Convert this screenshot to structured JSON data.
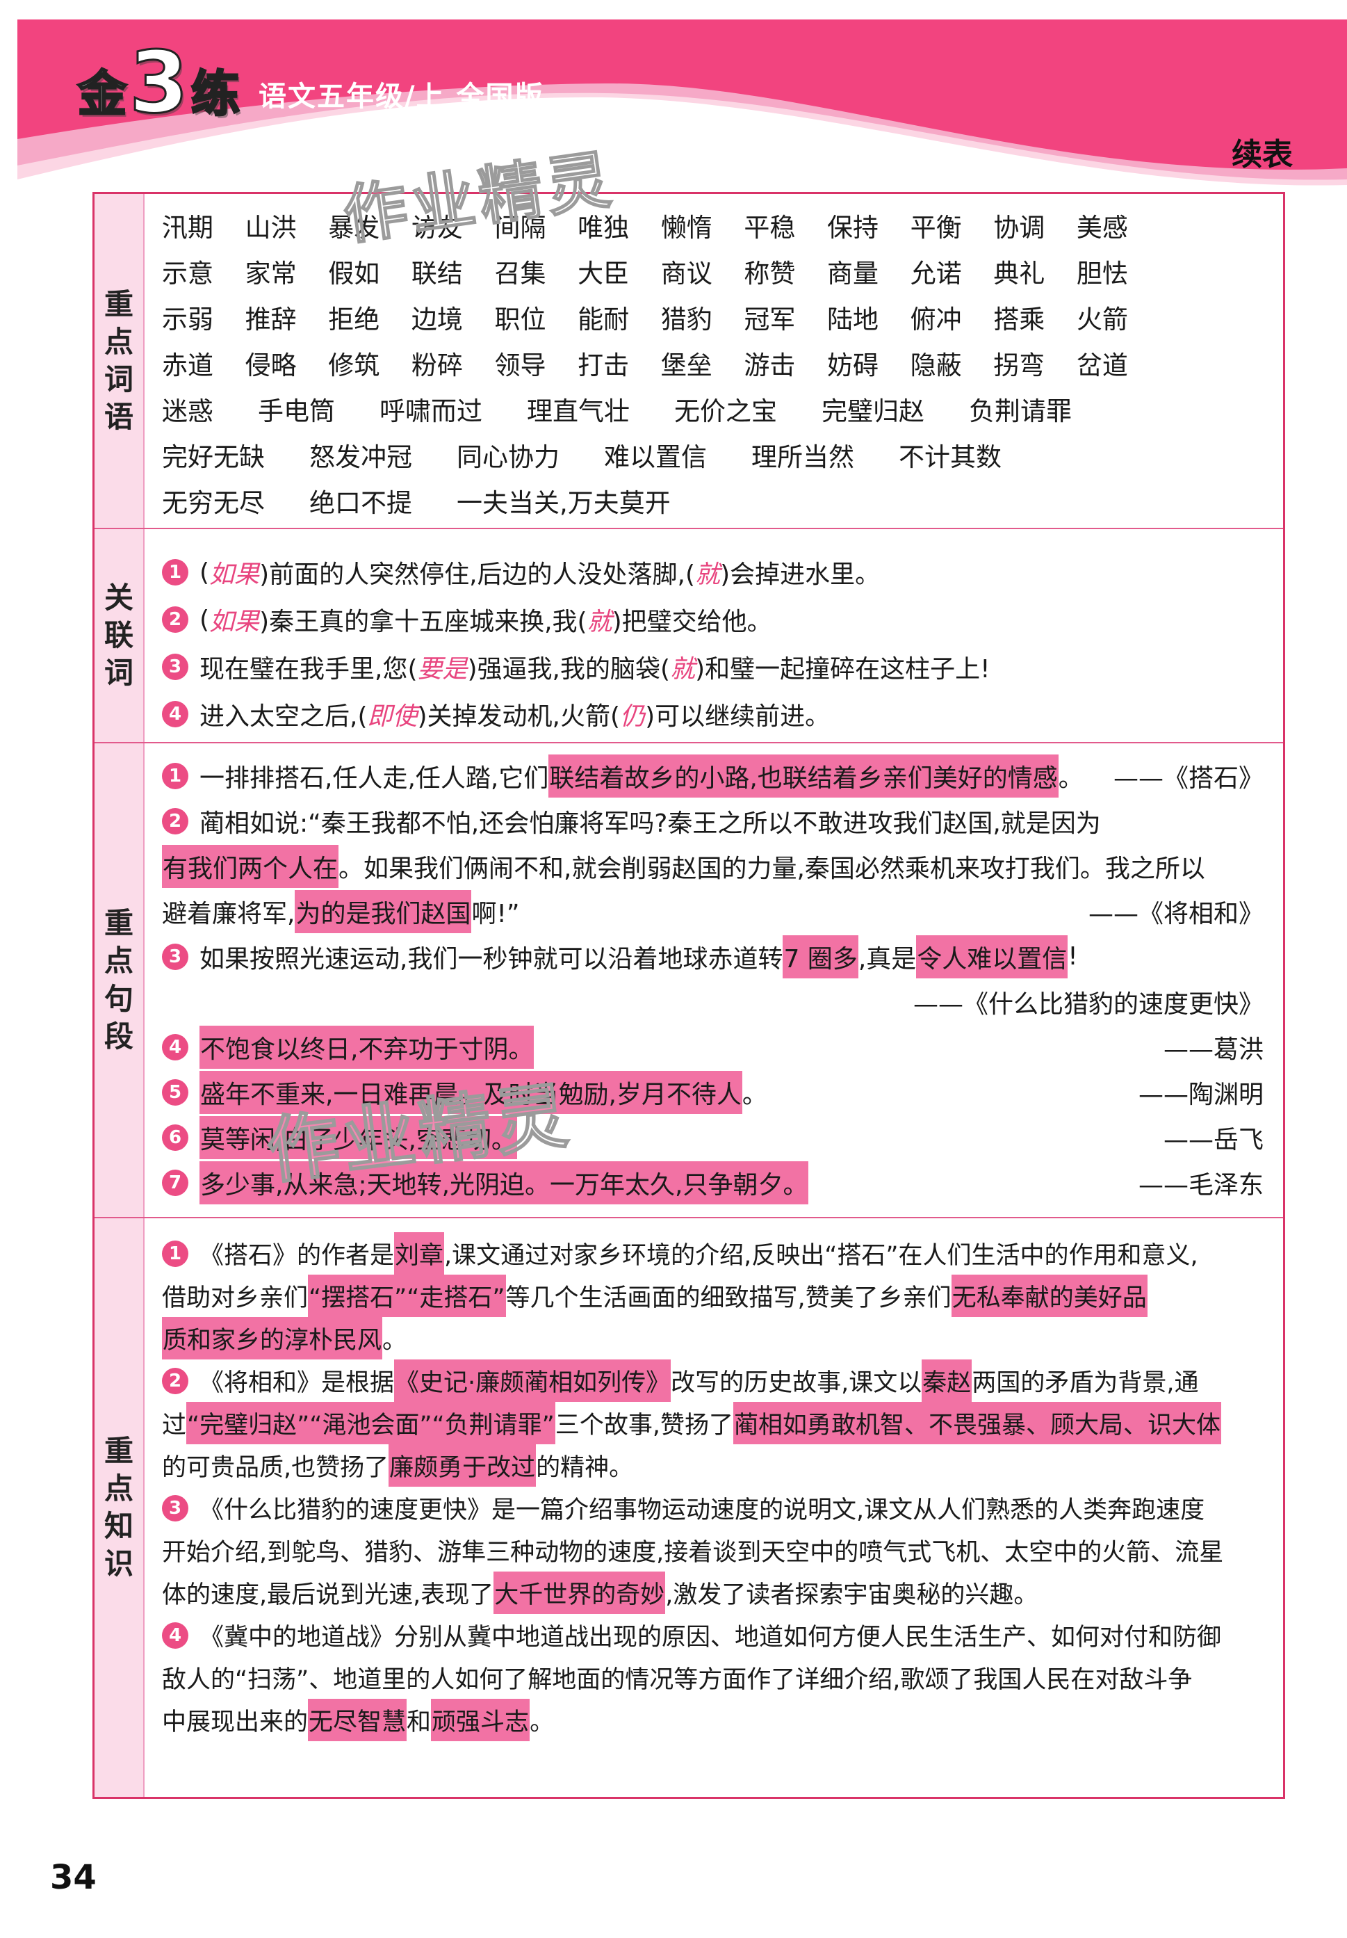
{
  "header": {
    "logo_parts": [
      "金",
      "3",
      "练"
    ],
    "subtitle": "语文五年级/上  全国版",
    "continued_label": "续表"
  },
  "watermark": "作业精灵",
  "page_number": "34",
  "colors": {
    "banner_magenta": "#f2447f",
    "banner_light_pink": "#f6a9c7",
    "banner_pale_pink": "#fcd6e4",
    "table_border": "#d93368",
    "label_band": "#fbdce9",
    "highlight": "#f272a4",
    "number_badge": "#ec4c84",
    "answer_pink": "#e8457f"
  },
  "sections": [
    {
      "key": "key-words",
      "label": "重点词语",
      "type": "words",
      "rows": [
        {
          "mode": "between",
          "words": [
            "汛期",
            "山洪",
            "暴发",
            "访友",
            "间隔",
            "唯独",
            "懒惰",
            "平稳",
            "保持",
            "平衡",
            "协调",
            "美感"
          ]
        },
        {
          "mode": "between",
          "words": [
            "示意",
            "家常",
            "假如",
            "联结",
            "召集",
            "大臣",
            "商议",
            "称赞",
            "商量",
            "允诺",
            "典礼",
            "胆怯"
          ]
        },
        {
          "mode": "between",
          "words": [
            "示弱",
            "推辞",
            "拒绝",
            "边境",
            "职位",
            "能耐",
            "猎豹",
            "冠军",
            "陆地",
            "俯冲",
            "搭乘",
            "火箭"
          ]
        },
        {
          "mode": "between",
          "words": [
            "赤道",
            "侵略",
            "修筑",
            "粉碎",
            "领导",
            "打击",
            "堡垒",
            "游击",
            "妨碍",
            "隐蔽",
            "拐弯",
            "岔道"
          ]
        },
        {
          "mode": "flow",
          "words": [
            "迷惑",
            "手电筒",
            "呼啸而过",
            "理直气壮",
            "无价之宝",
            "完璧归赵",
            "负荆请罪"
          ]
        },
        {
          "mode": "flow",
          "words": [
            "完好无缺",
            "怒发冲冠",
            "同心协力",
            "难以置信",
            "理所当然",
            "不计其数"
          ]
        },
        {
          "mode": "flow",
          "words": [
            "无穷无尽",
            "绝口不提",
            "一夫当关,万夫莫开"
          ]
        }
      ]
    },
    {
      "key": "conjunctions",
      "label": "关联词",
      "type": "items",
      "cls": "s2",
      "items": [
        {
          "n": "1",
          "lines": [
            {
              "segs": [
                {
                  "t": "("
                },
                {
                  "t": "如果",
                  "s": "ans"
                },
                {
                  "t": ")前面的人突然停住,后边的人没处落脚,("
                },
                {
                  "t": "就",
                  "s": "ans"
                },
                {
                  "t": ")会掉进水里。"
                }
              ]
            }
          ]
        },
        {
          "n": "2",
          "lines": [
            {
              "segs": [
                {
                  "t": "("
                },
                {
                  "t": "如果",
                  "s": "ans"
                },
                {
                  "t": ")秦王真的拿十五座城来换,我("
                },
                {
                  "t": "就",
                  "s": "ans"
                },
                {
                  "t": ")把璧交给他。"
                }
              ]
            }
          ]
        },
        {
          "n": "3",
          "lines": [
            {
              "segs": [
                {
                  "t": "现在璧在我手里,您("
                },
                {
                  "t": "要是",
                  "s": "ans"
                },
                {
                  "t": ")强逼我,我的脑袋("
                },
                {
                  "t": "就",
                  "s": "ans"
                },
                {
                  "t": ")和璧一起撞碎在这柱子上!"
                }
              ]
            }
          ]
        },
        {
          "n": "4",
          "lines": [
            {
              "segs": [
                {
                  "t": "进入太空之后,("
                },
                {
                  "t": "即使",
                  "s": "ans"
                },
                {
                  "t": ")关掉发动机,火箭("
                },
                {
                  "t": "仍",
                  "s": "ans"
                },
                {
                  "t": ")可以继续前进。"
                }
              ]
            }
          ]
        }
      ]
    },
    {
      "key": "key-sentences",
      "label": "重点句段",
      "type": "items",
      "cls": "s3",
      "items": [
        {
          "n": "1",
          "lines": [
            {
              "segs": [
                {
                  "t": "一排排搭石,任人走,任人踏,它们"
                },
                {
                  "t": "联结着故乡的小路,也联结着乡亲们美好的情感",
                  "s": "hl"
                },
                {
                  "t": "。"
                }
              ],
              "right": "——《搭石》"
            }
          ]
        },
        {
          "n": "2",
          "lines": [
            {
              "segs": [
                {
                  "t": "蔺相如说:“秦王我都不怕,还会怕廉将军吗?秦王之所以不敢进攻我们赵国,就是因为"
                }
              ]
            },
            {
              "segs": [
                {
                  "t": "有我们两个人在",
                  "s": "hl"
                },
                {
                  "t": "。如果我们俩闹不和,就会削弱赵国的力量,秦国必然乘机来攻打我们。我之所以"
                }
              ]
            },
            {
              "segs": [
                {
                  "t": "避着廉将军,"
                },
                {
                  "t": "为的是我们赵国",
                  "s": "hl"
                },
                {
                  "t": "啊!”"
                }
              ],
              "right": "——《将相和》"
            }
          ]
        },
        {
          "n": "3",
          "lines": [
            {
              "segs": [
                {
                  "t": "如果按照光速运动,我们一秒钟就可以沿着地球赤道转"
                },
                {
                  "t": "7 圈多",
                  "s": "hl"
                },
                {
                  "t": ",真是"
                },
                {
                  "t": "令人难以置信",
                  "s": "hl"
                },
                {
                  "t": "!"
                }
              ]
            },
            {
              "right": "——《什么比猎豹的速度更快》"
            }
          ]
        },
        {
          "n": "4",
          "lines": [
            {
              "segs": [
                {
                  "t": "不饱食以终日,不弃功于寸阴。",
                  "s": "hl"
                }
              ],
              "right": "——葛洪"
            }
          ]
        },
        {
          "n": "5",
          "lines": [
            {
              "segs": [
                {
                  "t": "盛年不重来,一日难再晨。及时当勉励,岁月不待人",
                  "s": "hl"
                },
                {
                  "t": "。"
                }
              ],
              "right": "——陶渊明"
            }
          ]
        },
        {
          "n": "6",
          "lines": [
            {
              "segs": [
                {
                  "t": "莫等闲,白了少年头,空悲切。",
                  "s": "hl"
                }
              ],
              "right": "——岳飞"
            }
          ]
        },
        {
          "n": "7",
          "lines": [
            {
              "segs": [
                {
                  "t": "多少事,从来急;天地转,光阴迫。一万年太久,只争朝夕。",
                  "s": "hl"
                }
              ],
              "right": "——毛泽东"
            }
          ]
        }
      ]
    },
    {
      "key": "key-knowledge",
      "label": "重点知识",
      "type": "items",
      "cls": "s4",
      "items": [
        {
          "n": "1",
          "lines": [
            {
              "segs": [
                {
                  "t": "《搭石》的作者是"
                },
                {
                  "t": "刘章",
                  "s": "hl"
                },
                {
                  "t": ",课文通过对家乡环境的介绍,反映出“搭石”在人们生活中的作用和意义,"
                }
              ]
            },
            {
              "segs": [
                {
                  "t": "借助对乡亲们"
                },
                {
                  "t": "“摆搭石”“走搭石”",
                  "s": "hl"
                },
                {
                  "t": "等几个生活画面的细致描写,赞美了乡亲们"
                },
                {
                  "t": "无私奉献的美好品",
                  "s": "hl"
                }
              ]
            },
            {
              "segs": [
                {
                  "t": "质和家乡的淳朴民风",
                  "s": "hl"
                },
                {
                  "t": "。"
                }
              ]
            }
          ]
        },
        {
          "n": "2",
          "lines": [
            {
              "segs": [
                {
                  "t": "《将相和》是根据"
                },
                {
                  "t": "《史记·廉颇蔺相如列传》",
                  "s": "hl"
                },
                {
                  "t": "改写的历史故事,课文以"
                },
                {
                  "t": "秦赵",
                  "s": "hl"
                },
                {
                  "t": "两国的矛盾为背景,通"
                }
              ]
            },
            {
              "segs": [
                {
                  "t": "过"
                },
                {
                  "t": "“完璧归赵”“渑池会面”“负荆请罪”",
                  "s": "hl"
                },
                {
                  "t": "三个故事,赞扬了"
                },
                {
                  "t": "蔺相如勇敢机智、不畏强暴、顾大局、识大体",
                  "s": "hl"
                }
              ]
            },
            {
              "segs": [
                {
                  "t": "的可贵品质,也赞扬了"
                },
                {
                  "t": "廉颇勇于改过",
                  "s": "hl"
                },
                {
                  "t": "的精神。"
                }
              ]
            }
          ]
        },
        {
          "n": "3",
          "lines": [
            {
              "segs": [
                {
                  "t": "《什么比猎豹的速度更快》是一篇介绍事物运动速度的说明文,课文从人们熟悉的人类奔跑速度"
                }
              ]
            },
            {
              "segs": [
                {
                  "t": "开始介绍,到鸵鸟、猎豹、游隼三种动物的速度,接着谈到天空中的喷气式飞机、太空中的火箭、流星"
                }
              ]
            },
            {
              "segs": [
                {
                  "t": "体的速度,最后说到光速,表现了"
                },
                {
                  "t": "大千世界的奇妙",
                  "s": "hl"
                },
                {
                  "t": ",激发了读者探索宇宙奥秘的兴趣。"
                }
              ]
            }
          ]
        },
        {
          "n": "4",
          "lines": [
            {
              "segs": [
                {
                  "t": "《冀中的地道战》分别从冀中地道战出现的原因、地道如何方便人民生活生产、如何对付和防御"
                }
              ]
            },
            {
              "segs": [
                {
                  "t": "敌人的“扫荡”、地道里的人如何了解地面的情况等方面作了详细介绍,歌颂了我国人民在对敌斗争"
                }
              ]
            },
            {
              "segs": [
                {
                  "t": "中展现出来的"
                },
                {
                  "t": "无尽智慧",
                  "s": "hl"
                },
                {
                  "t": "和"
                },
                {
                  "t": "顽强斗志",
                  "s": "hl"
                },
                {
                  "t": "。"
                }
              ]
            }
          ]
        }
      ]
    }
  ]
}
